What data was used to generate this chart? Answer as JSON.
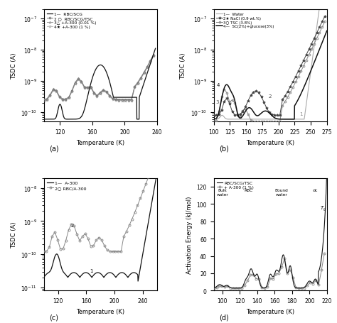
{
  "fig_width": 4.74,
  "fig_height": 4.56,
  "dpi": 100,
  "panels": {
    "a": {
      "xlabel": "Temperature (K)",
      "ylabel": "TSDC (A)",
      "xmin": 100,
      "xmax": 240,
      "ymin": 5e-11,
      "ymax": 2e-07,
      "label": "(a)"
    },
    "b": {
      "xlabel": "Temperature (K)",
      "ylabel": "TSDC (A)",
      "xmin": 100,
      "xmax": 275,
      "ymin": 5e-11,
      "ymax": 2e-07,
      "label": "(b)"
    },
    "c": {
      "xlabel": "Temperature (K)",
      "ylabel": "TSDC (A)",
      "xmin": 100,
      "xmax": 260,
      "ymin": 8e-12,
      "ymax": 2e-08,
      "label": "(c)"
    },
    "d": {
      "xlabel": "Temperature (K)",
      "ylabel": "Activation Energy (kJ/mol)",
      "xmin": 90,
      "xmax": 220,
      "ymin": 0,
      "ymax": 130,
      "label": "(d)"
    }
  }
}
